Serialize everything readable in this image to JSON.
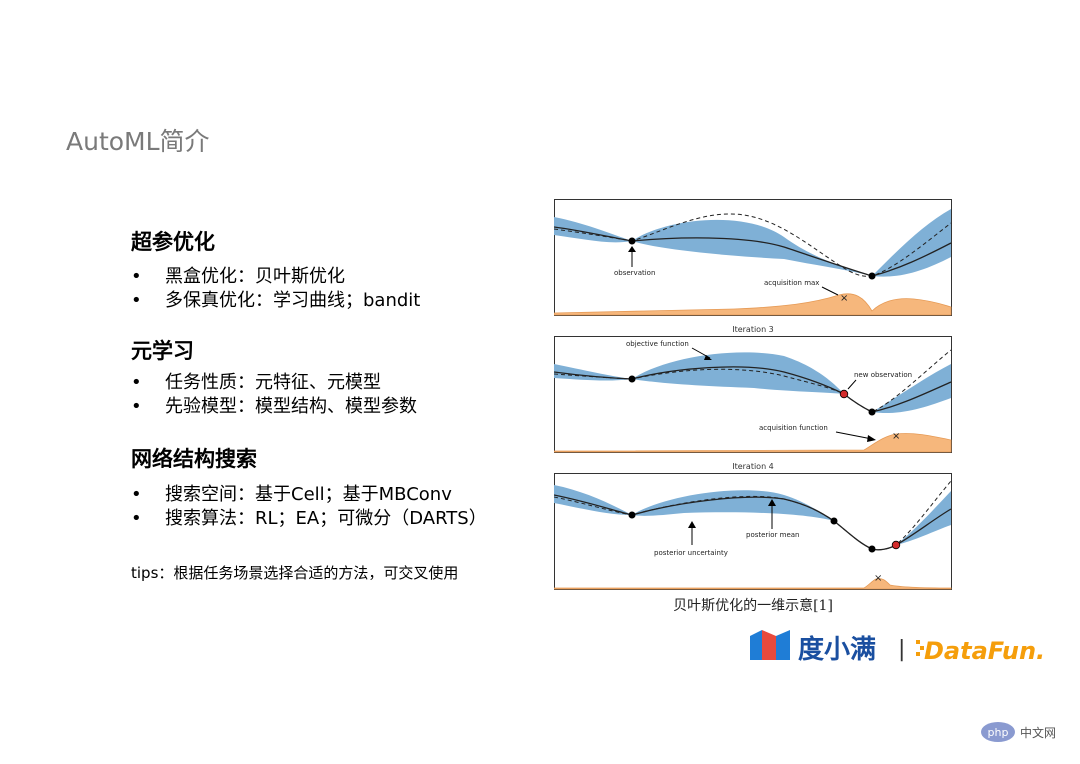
{
  "page": {
    "title": "AutoML简介",
    "caption": "贝叶斯优化的一维示意[1]",
    "tips": "tips：根据任务场景选择合适的方法，可交叉使用"
  },
  "sections": [
    {
      "heading": "超参优化",
      "items": [
        "黑盒优化：贝叶斯优化",
        "多保真优化：学习曲线；bandit"
      ]
    },
    {
      "heading": "元学习",
      "items": [
        "任务性质：元特征、元模型",
        "先验模型：模型结构、模型参数"
      ]
    },
    {
      "heading": "网络结构搜索",
      "items": [
        "搜索空间：基于Cell；基于MBConv",
        "搜索算法：RL；EA；可微分（DARTS）"
      ]
    }
  ],
  "figure": {
    "panels": [
      {
        "title": "",
        "annotations": [
          "observation",
          "acquisition max"
        ]
      },
      {
        "title": "Iteration 3",
        "annotations": [
          "objective function",
          "new observation",
          "acquisition function"
        ]
      },
      {
        "title": "Iteration 4",
        "annotations": [
          "posterior uncertainty",
          "posterior mean"
        ]
      }
    ],
    "colors": {
      "band": "#7fb0d6",
      "acquisition": "#f6b77c",
      "new_point": "#d22b2b"
    }
  },
  "logos": {
    "brand1": "度小满",
    "separator": "|",
    "brand2": "DataFun.",
    "brand2_colors": [
      "#f59e0b",
      "#ff5a5f"
    ]
  },
  "watermark": {
    "badge": "php",
    "text": "中文网"
  }
}
